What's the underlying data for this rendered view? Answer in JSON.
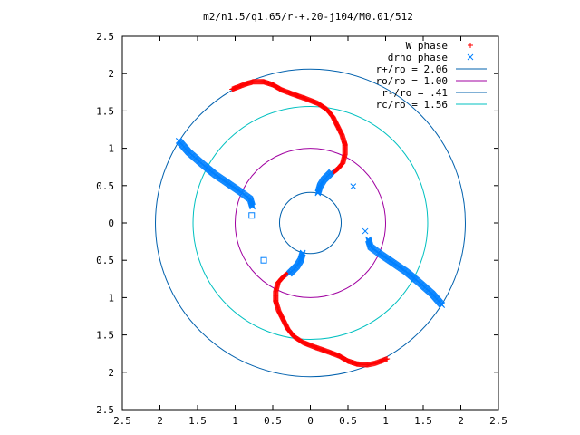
{
  "chart_data": {
    "type": "scatter",
    "title": "m2/n1.5/q1.65/r-+.20-j104/M0.01/512",
    "xlabel": "",
    "ylabel": "",
    "xlim": [
      -2.5,
      2.5
    ],
    "ylim": [
      -2.5,
      2.5
    ],
    "x_tick_values": [
      -2.5,
      -2,
      -1.5,
      -1,
      -0.5,
      0,
      0.5,
      1,
      1.5,
      2,
      2.5
    ],
    "x_tick_labels": [
      "2.5",
      "2",
      "1.5",
      "1",
      "0.5",
      "0",
      "0.5",
      "1",
      "1.5",
      "2",
      "2.5"
    ],
    "y_tick_values": [
      2.5,
      2,
      1.5,
      1,
      0.5,
      0,
      -0.5,
      -1,
      -1.5,
      -2,
      -2.5
    ],
    "y_tick_labels": [
      "2.5",
      "2",
      "1.5",
      "1",
      "0.5",
      "0",
      "0.5",
      "1",
      "1.5",
      "2",
      "2.5"
    ],
    "grid": false,
    "legend_position": "top-right",
    "series": [
      {
        "name": "W phase",
        "marker": "plus",
        "color": "#ff0000",
        "points": [
          [
            -1.04,
            1.79
          ],
          [
            -0.86,
            1.86
          ],
          [
            -0.76,
            1.89
          ],
          [
            -0.62,
            1.89
          ],
          [
            -0.5,
            1.85
          ],
          [
            -0.38,
            1.78
          ],
          [
            -0.22,
            1.72
          ],
          [
            -0.05,
            1.66
          ],
          [
            0.1,
            1.6
          ],
          [
            0.22,
            1.52
          ],
          [
            0.3,
            1.42
          ],
          [
            0.36,
            1.3
          ],
          [
            0.42,
            1.18
          ],
          [
            0.46,
            1.05
          ],
          [
            0.46,
            0.92
          ],
          [
            0.43,
            0.8
          ],
          [
            0.36,
            0.72
          ],
          [
            0.28,
            0.66
          ],
          [
            -0.28,
            -0.66
          ],
          [
            -0.36,
            -0.72
          ],
          [
            -0.43,
            -0.8
          ],
          [
            -0.46,
            -0.92
          ],
          [
            -0.46,
            -1.05
          ],
          [
            -0.42,
            -1.18
          ],
          [
            -0.36,
            -1.3
          ],
          [
            -0.3,
            -1.42
          ],
          [
            -0.22,
            -1.52
          ],
          [
            -0.1,
            -1.6
          ],
          [
            0.05,
            -1.66
          ],
          [
            0.22,
            -1.72
          ],
          [
            0.38,
            -1.78
          ],
          [
            0.5,
            -1.85
          ],
          [
            0.62,
            -1.89
          ],
          [
            0.76,
            -1.9
          ],
          [
            0.86,
            -1.88
          ],
          [
            1.02,
            -1.82
          ]
        ]
      },
      {
        "name": "drho phase",
        "marker": "x",
        "color": "#0080ff",
        "points": [
          [
            -1.75,
            1.1
          ],
          [
            -1.62,
            0.95
          ],
          [
            -1.45,
            0.8
          ],
          [
            -1.27,
            0.65
          ],
          [
            -1.08,
            0.52
          ],
          [
            -0.92,
            0.41
          ],
          [
            -0.8,
            0.32
          ],
          [
            -0.77,
            0.22
          ],
          [
            0.1,
            0.4
          ],
          [
            0.13,
            0.5
          ],
          [
            0.18,
            0.58
          ],
          [
            0.28,
            0.68
          ],
          [
            1.75,
            -1.1
          ],
          [
            1.62,
            -0.95
          ],
          [
            1.45,
            -0.8
          ],
          [
            1.27,
            -0.65
          ],
          [
            1.08,
            -0.52
          ],
          [
            0.92,
            -0.41
          ],
          [
            0.8,
            -0.32
          ],
          [
            0.77,
            -0.22
          ],
          [
            -0.1,
            -0.4
          ],
          [
            -0.13,
            -0.5
          ],
          [
            -0.18,
            -0.58
          ],
          [
            -0.28,
            -0.68
          ],
          [
            0.57,
            0.49
          ],
          [
            0.73,
            -0.11
          ]
        ]
      },
      {
        "name": "",
        "marker": "square",
        "color": "#0080ff",
        "points": [
          [
            -0.78,
            0.1
          ],
          [
            -0.62,
            -0.5
          ]
        ]
      }
    ],
    "circles": [
      {
        "name": "r+/ro = 2.06",
        "radius": 2.06,
        "color": "#0060ad"
      },
      {
        "name": "ro/ro = 1.00",
        "radius": 1.0,
        "color": "#a000a0"
      },
      {
        "name": "r-/ro = .41",
        "radius": 0.41,
        "color": "#0060ad"
      },
      {
        "name": "rc/ro = 1.56",
        "radius": 1.56,
        "color": "#00c0c0"
      }
    ]
  }
}
